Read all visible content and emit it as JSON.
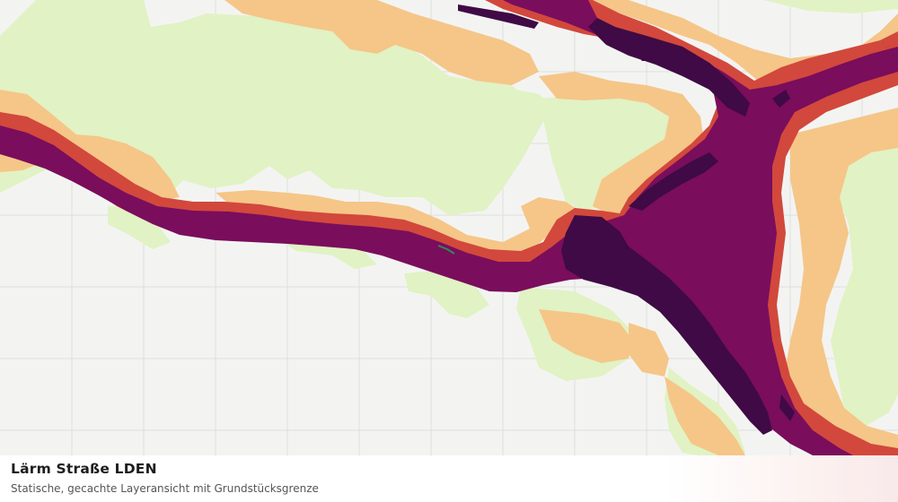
{
  "map": {
    "layer_colors": {
      "background": "#f3f4f2",
      "grid": "#dedfdd",
      "band_55_60": "#e1f2c4",
      "band_60_65": "#f5c688",
      "band_65_70": "#d2483c",
      "band_70_75": "#7a0d5c",
      "band_75_plus": "#3f0a45",
      "parcel_boundary": "#2e8b57"
    }
  },
  "caption": {
    "title": "Lärm Straße LDEN",
    "subtitle": "Statische, gecachte Layeransicht mit Grundstücksgrenze"
  }
}
